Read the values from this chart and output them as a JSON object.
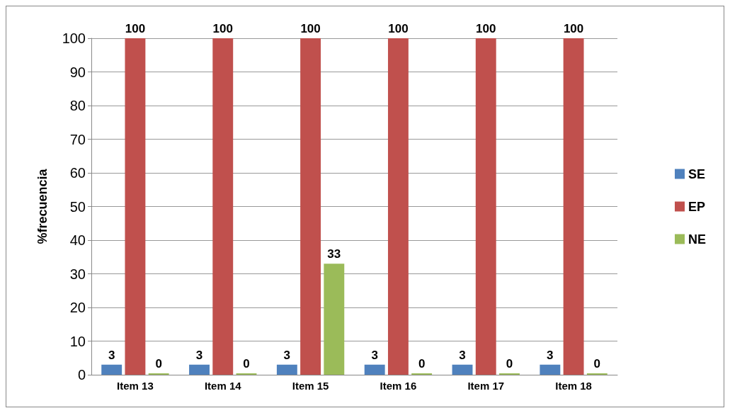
{
  "chart_data": {
    "type": "bar",
    "ylabel": "%frecuencia",
    "categories": [
      "Item 13",
      "Item 14",
      "Item 15",
      "Item 16",
      "Item 17",
      "Item 18"
    ],
    "series": [
      {
        "name": "SE",
        "color": "#4f81bd",
        "values": [
          3,
          3,
          3,
          3,
          3,
          3
        ]
      },
      {
        "name": "EP",
        "color": "#c0504d",
        "values": [
          100,
          100,
          100,
          100,
          100,
          100
        ]
      },
      {
        "name": "NE",
        "color": "#9bbb59",
        "values": [
          0,
          0,
          33,
          0,
          0,
          0
        ]
      }
    ],
    "ylim": [
      0,
      100
    ],
    "yticks": [
      0,
      10,
      20,
      30,
      40,
      50,
      60,
      70,
      80,
      90,
      100
    ],
    "grid": "y",
    "legend": "right",
    "data_labels": true
  }
}
